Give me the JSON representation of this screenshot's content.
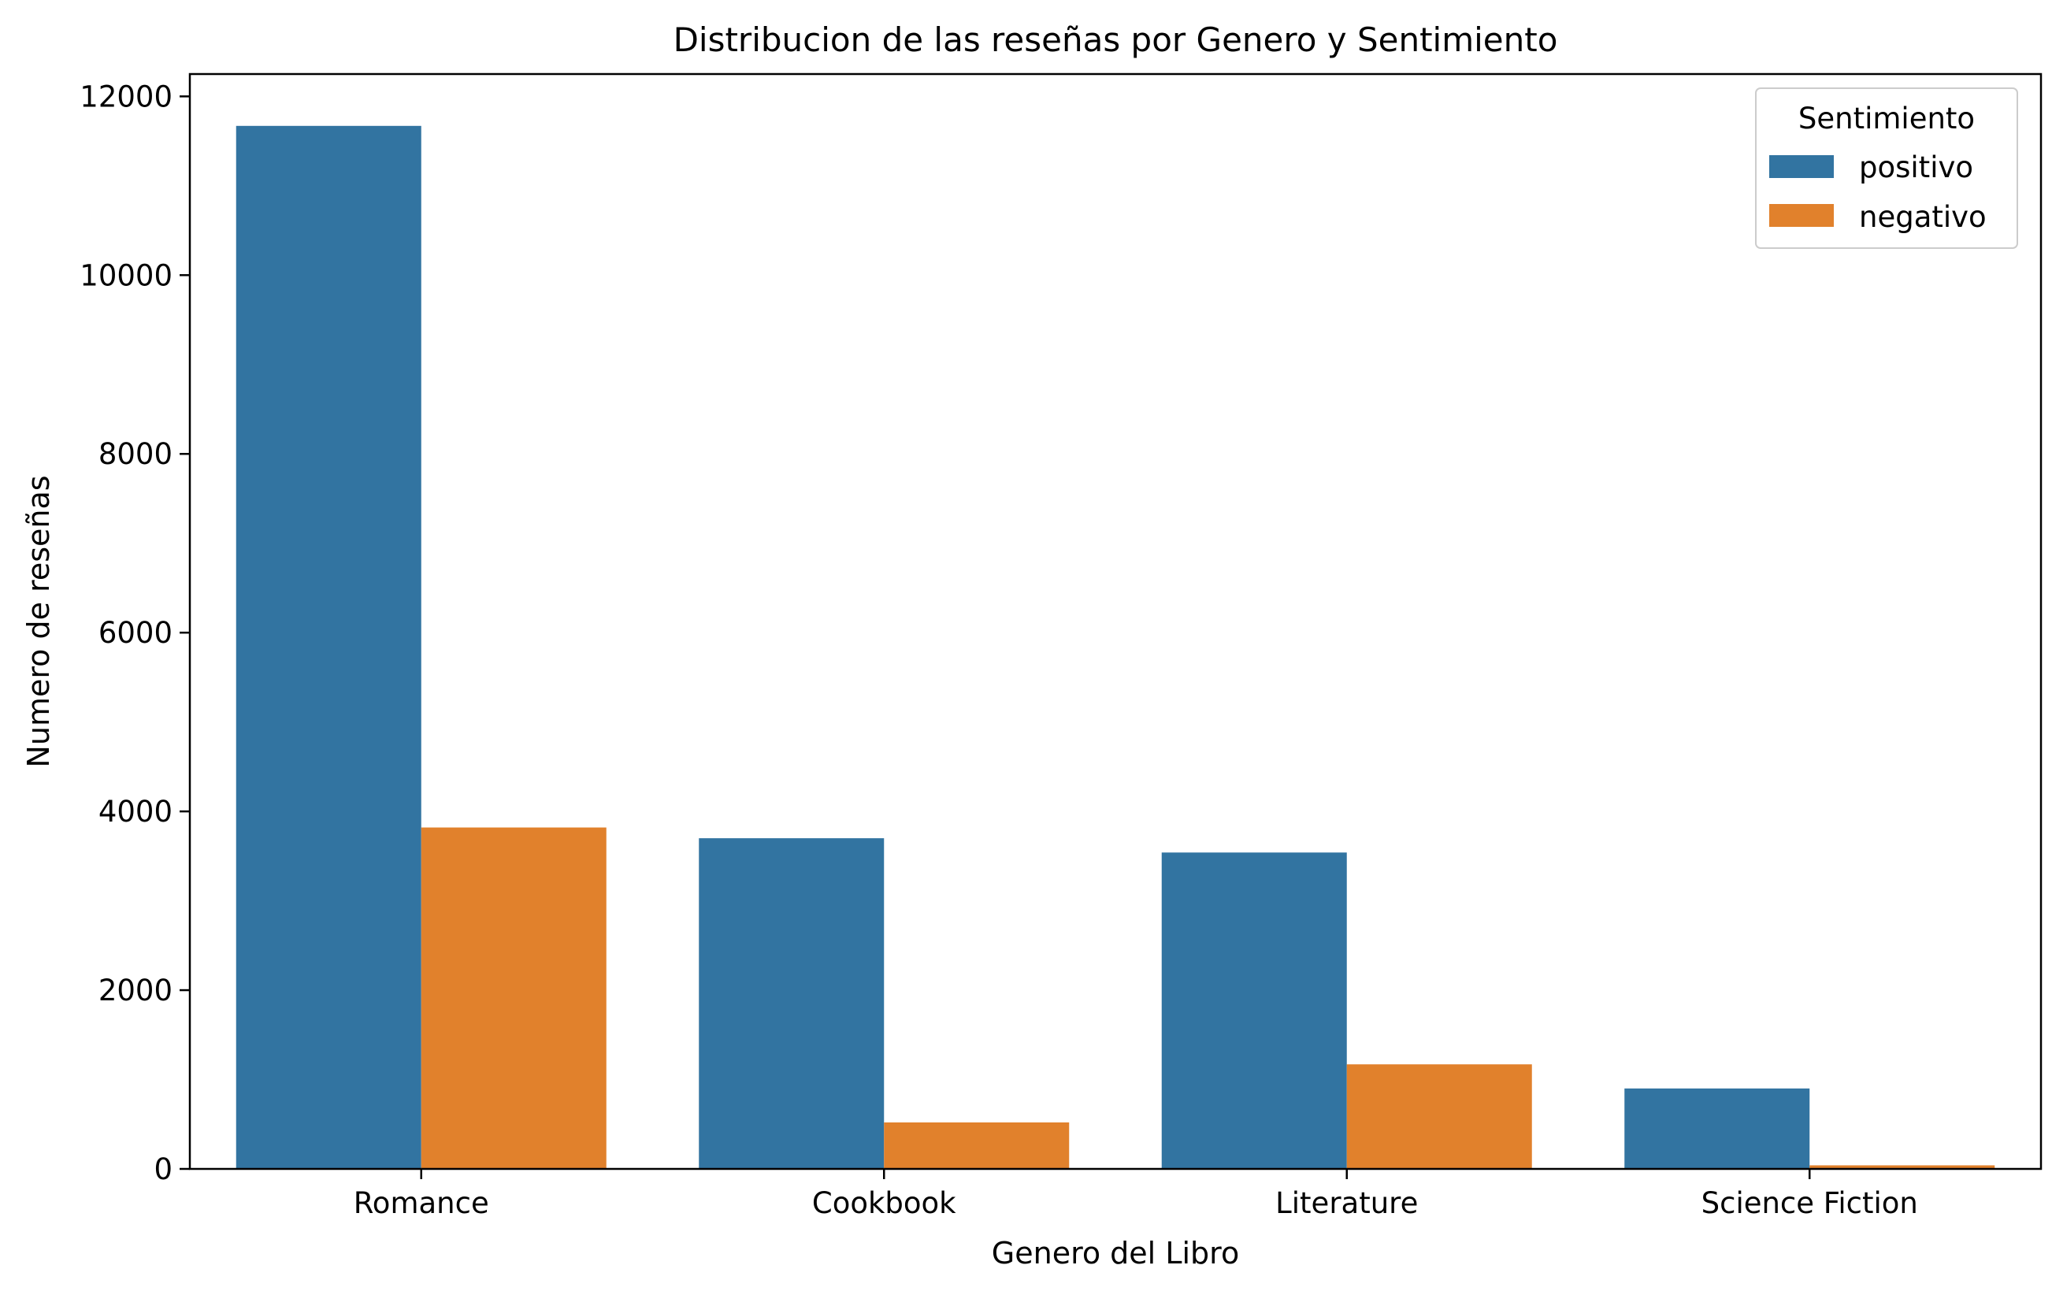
{
  "chart_data": {
    "type": "bar",
    "title": "Distribucion de las reseñas por Genero y Sentimiento",
    "xlabel": "Genero del Libro",
    "ylabel": "Numero de reseñas",
    "categories": [
      "Romance",
      "Cookbook",
      "Literature",
      "Science Fiction"
    ],
    "series": [
      {
        "name": "positivo",
        "color": "#3274a1",
        "values": [
          11670,
          3700,
          3540,
          900
        ]
      },
      {
        "name": "negativo",
        "color": "#e1812c",
        "values": [
          3820,
          520,
          1170,
          40
        ]
      }
    ],
    "ylim": [
      0,
      12250
    ],
    "yticks": [
      0,
      2000,
      4000,
      6000,
      8000,
      10000,
      12000
    ],
    "grid": false,
    "legend": {
      "title": "Sentimiento",
      "placement": "top-right"
    }
  }
}
